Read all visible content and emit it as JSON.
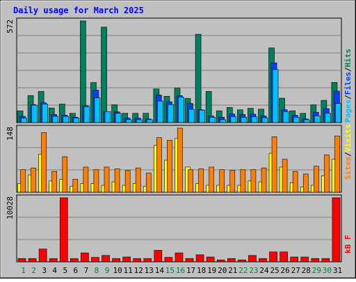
{
  "title": "Daily usage for March 2025",
  "colors": {
    "title": "#0000ff",
    "background": "#c0c0c0",
    "hits": "#00805c",
    "files": "#0040ff",
    "pages": "#00c0ff",
    "visits": "#ffff00",
    "sites": "#ff8000",
    "kbytes": "#ff0000",
    "weekday_label": "#000000",
    "weekend_label": "#008040"
  },
  "chart_data": [
    {
      "type": "bar",
      "panel": "hits-files-pages",
      "ymax_label": "572",
      "ylim": [
        0,
        572
      ],
      "categories": [
        "1",
        "2",
        "3",
        "4",
        "5",
        "6",
        "7",
        "8",
        "9",
        "10",
        "11",
        "12",
        "13",
        "14",
        "15",
        "16",
        "17",
        "18",
        "19",
        "20",
        "21",
        "22",
        "23",
        "24",
        "25",
        "26",
        "27",
        "28",
        "29",
        "30",
        "31"
      ],
      "legend": [
        "Pages",
        "/",
        "Files",
        "/",
        "Hits"
      ],
      "series": [
        {
          "name": "Hits",
          "values": [
            66,
            152,
            175,
            82,
            104,
            52,
            572,
            225,
            537,
            100,
            52,
            52,
            52,
            189,
            148,
            193,
            136,
            497,
            175,
            66,
            85,
            72,
            80,
            75,
            420,
            137,
            66,
            52,
            100,
            125,
            226
          ]
        },
        {
          "name": "Files",
          "values": [
            35,
            101,
            111,
            45,
            42,
            30,
            94,
            182,
            61,
            60,
            25,
            25,
            20,
            155,
            117,
            151,
            107,
            72,
            37,
            30,
            48,
            45,
            47,
            37,
            336,
            72,
            41,
            20,
            58,
            78,
            177
          ]
        },
        {
          "name": "Pages",
          "values": [
            25,
            98,
            104,
            35,
            35,
            25,
            90,
            139,
            62,
            52,
            16,
            16,
            16,
            121,
            101,
            143,
            74,
            70,
            30,
            16,
            34,
            30,
            33,
            27,
            298,
            62,
            30,
            16,
            38,
            53,
            107
          ]
        }
      ],
      "weekend_days": [
        "1",
        "2",
        "8",
        "9",
        "15",
        "16",
        "22",
        "23",
        "29",
        "30"
      ]
    },
    {
      "type": "bar",
      "panel": "visits-sites",
      "ymax_label": "148",
      "ylim": [
        0,
        148
      ],
      "legend": [
        "Sites",
        "/",
        "Visits"
      ],
      "series": [
        {
          "name": "Visits",
          "values": [
            20,
            40,
            88,
            26,
            30,
            14,
            20,
            20,
            16,
            24,
            16,
            20,
            14,
            108,
            74,
            124,
            58,
            20,
            16,
            16,
            16,
            16,
            26,
            24,
            90,
            58,
            22,
            12,
            16,
            38,
            76
          ]
        },
        {
          "name": "Sites",
          "values": [
            52,
            56,
            138,
            48,
            82,
            30,
            58,
            52,
            58,
            54,
            50,
            56,
            44,
            126,
            120,
            148,
            52,
            54,
            58,
            52,
            50,
            52,
            52,
            56,
            128,
            76,
            48,
            42,
            60,
            86,
            130
          ]
        }
      ]
    },
    {
      "type": "bar",
      "panel": "kbytes",
      "ymax_label": "10028",
      "ylim": [
        0,
        10028
      ],
      "legend": [
        "kB",
        "F"
      ],
      "series": [
        {
          "name": "kB F",
          "values": [
            520,
            520,
            2000,
            520,
            10028,
            520,
            1400,
            700,
            1000,
            520,
            760,
            520,
            520,
            1800,
            700,
            1400,
            520,
            1100,
            760,
            300,
            520,
            300,
            1000,
            520,
            1550,
            1550,
            760,
            760,
            520,
            520,
            10028
          ]
        }
      ]
    }
  ]
}
